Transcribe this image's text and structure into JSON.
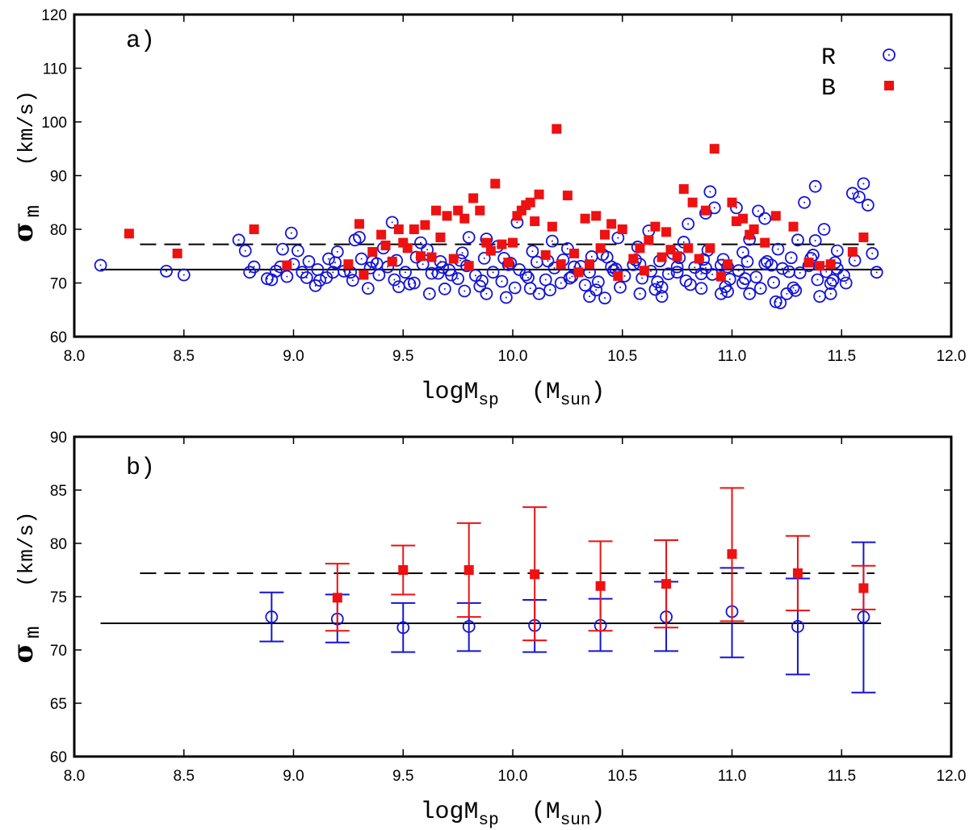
{
  "chart_data": [
    {
      "panel_label": "a)",
      "type": "scatter",
      "xlabel": {
        "main": "logM",
        "sub": "sp",
        "unit_pre": "(M",
        "unit_sub": "sun",
        "unit_post": ")"
      },
      "ylabel": {
        "symbol": "σ",
        "sub": "m",
        "unit": "(km/s)"
      },
      "xlim": [
        8.0,
        12.0
      ],
      "ylim": [
        60,
        120
      ],
      "xticks": [
        "8.0",
        "8.5",
        "9.0",
        "9.5",
        "10.0",
        "10.5",
        "11.0",
        "11.5",
        "12.0"
      ],
      "yticks": [
        "60",
        "70",
        "80",
        "90",
        "100",
        "110",
        "120"
      ],
      "reference_lines": [
        {
          "name": "R mean",
          "style": "solid",
          "y": 72.5,
          "x_range": [
            8.12,
            11.68
          ]
        },
        {
          "name": "B mean",
          "style": "dashed",
          "y": 77.2,
          "x_range": [
            8.3,
            11.65
          ]
        }
      ],
      "series": [
        {
          "name": "R",
          "marker": "open-circle-dot",
          "color": "#1414d6",
          "x": [
            8.12,
            8.42,
            8.5,
            8.75,
            8.78,
            8.8,
            8.82,
            8.88,
            8.9,
            8.92,
            8.94,
            8.95,
            8.97,
            8.99,
            9.12,
            9.18,
            9.3,
            9.45,
            9.62,
            9.72,
            9.8,
            9.88,
            9.97,
            10.02,
            10.12,
            10.22,
            10.35,
            10.42,
            10.45,
            10.58,
            10.62,
            10.68,
            10.75,
            10.8,
            10.86,
            10.88,
            10.9,
            10.92,
            10.95,
            10.98,
            11.02,
            11.05,
            11.08,
            11.12,
            11.15,
            11.2,
            11.22,
            11.25,
            11.3,
            11.33,
            11.38,
            11.4,
            11.42,
            11.45,
            11.48,
            11.52,
            11.55,
            11.58,
            11.6,
            11.62,
            11.64,
            11.66,
            9.0,
            9.04,
            9.07,
            9.11,
            9.15,
            9.19,
            9.23,
            9.27,
            9.31,
            9.35,
            9.39,
            9.43,
            9.47,
            9.51,
            9.55,
            9.59,
            9.63,
            9.67,
            9.71,
            9.75,
            9.79,
            9.83,
            9.87,
            9.91,
            9.95,
            9.99,
            10.03,
            10.07,
            10.11,
            10.15,
            10.19,
            10.23,
            10.27,
            10.31,
            10.35,
            10.39,
            10.43,
            10.47,
            10.51,
            10.55,
            10.59,
            10.63,
            10.67,
            10.71,
            10.75,
            10.79,
            10.83,
            10.87,
            10.91,
            10.95,
            10.99,
            11.03,
            11.07,
            11.11,
            11.15,
            11.19,
            11.23,
            11.27,
            11.31,
            11.35,
            11.39,
            11.43,
            11.47,
            11.51,
            9.02,
            9.1,
            9.2,
            9.34,
            9.41,
            9.53,
            9.61,
            9.69,
            9.77,
            9.85,
            9.93,
            10.01,
            10.09,
            10.17,
            10.25,
            10.33,
            10.41,
            10.49,
            10.57,
            10.65,
            10.73,
            10.81,
            10.89,
            10.97,
            11.05,
            11.13,
            11.21,
            11.29,
            11.37,
            11.45,
            9.06,
            9.26,
            9.46,
            9.66,
            9.86,
            10.06,
            10.26,
            10.46,
            10.66,
            10.86,
            11.06,
            11.26,
            11.46,
            9.16,
            9.36,
            9.56,
            9.76,
            9.96,
            10.16,
            10.36,
            10.56,
            10.76,
            10.96,
            11.16,
            11.36,
            11.56,
            9.28,
            9.58,
            9.88,
            10.18,
            10.48,
            10.78,
            11.08,
            11.38,
            9.48,
            9.78,
            10.08,
            10.38,
            10.68,
            10.98,
            11.28,
            9.38,
            9.68,
            9.98,
            10.28,
            10.58,
            10.88,
            11.18,
            11.48
          ],
          "y": [
            73.3,
            72.2,
            71.5,
            78.0,
            76.0,
            72.0,
            73.0,
            70.8,
            70.6,
            72.2,
            73.0,
            76.3,
            71.2,
            79.3,
            70.5,
            72.0,
            78.5,
            81.3,
            68.0,
            71.5,
            78.5,
            68.0,
            67.3,
            81.3,
            68.0,
            70.0,
            67.5,
            67.2,
            73.0,
            68.0,
            79.7,
            67.5,
            72.0,
            81.0,
            69.0,
            83.0,
            87.0,
            84.0,
            68.0,
            73.0,
            84.0,
            70.0,
            68.0,
            83.4,
            82.0,
            66.5,
            66.3,
            68.0,
            78.0,
            85.0,
            88.0,
            67.5,
            80.0,
            68.0,
            76.0,
            70.0,
            86.7,
            86.0,
            88.5,
            84.5,
            75.5,
            72.0,
            73.5,
            72.0,
            74.0,
            72.5,
            71.0,
            73.8,
            72.2,
            70.5,
            74.5,
            72.8,
            71.5,
            73.0,
            74.2,
            72.0,
            70.0,
            73.5,
            71.8,
            74.0,
            72.4,
            70.8,
            73.2,
            71.4,
            74.6,
            72.0,
            70.3,
            73.7,
            72.5,
            71.0,
            73.9,
            70.6,
            72.8,
            74.3,
            71.2,
            73.1,
            72.0,
            70.2,
            74.8,
            72.6,
            71.3,
            73.4,
            70.9,
            72.2,
            74.1,
            71.7,
            73.0,
            70.4,
            72.9,
            74.4,
            71.6,
            73.3,
            70.7,
            72.3,
            74.0,
            71.1,
            73.6,
            70.1,
            72.7,
            74.7,
            71.9,
            73.2,
            70.6,
            72.1,
            73.8,
            71.4,
            76.0,
            69.5,
            75.8,
            69.0,
            76.5,
            69.8,
            76.2,
            68.9,
            75.6,
            69.4,
            76.8,
            69.1,
            75.9,
            68.7,
            76.4,
            69.6,
            75.3,
            69.2,
            76.7,
            68.8,
            75.5,
            69.7,
            76.1,
            69.3,
            75.7,
            69.0,
            76.3,
            68.6,
            75.2,
            69.9,
            71.0,
            72.0,
            70.6,
            71.8,
            70.4,
            71.5,
            70.9,
            72.3,
            70.2,
            71.7,
            70.8,
            72.1,
            70.5,
            74.5,
            74.0,
            74.8,
            74.2,
            74.6,
            74.1,
            74.9,
            74.3,
            74.7,
            74.4,
            74.0,
            74.6,
            74.2,
            78.0,
            77.5,
            78.2,
            77.8,
            78.4,
            77.6,
            78.1,
            77.9,
            69.3,
            68.5,
            69.0,
            68.7,
            69.2,
            68.4,
            69.1,
            73.6,
            72.9,
            73.4,
            73.0,
            73.5,
            72.8,
            73.3,
            72.7
          ]
        },
        {
          "name": "B",
          "marker": "filled-square",
          "color": "#ee1111",
          "x": [
            8.25,
            8.47,
            8.82,
            8.97,
            9.25,
            9.3,
            9.32,
            9.36,
            9.4,
            9.42,
            9.45,
            9.48,
            9.5,
            9.52,
            9.55,
            9.58,
            9.6,
            9.63,
            9.65,
            9.67,
            9.7,
            9.73,
            9.75,
            9.78,
            9.8,
            9.82,
            9.85,
            9.88,
            9.9,
            9.92,
            9.95,
            9.98,
            10.0,
            10.02,
            10.04,
            10.06,
            10.08,
            10.1,
            10.12,
            10.15,
            10.18,
            10.2,
            10.22,
            10.25,
            10.28,
            10.3,
            10.33,
            10.35,
            10.38,
            10.4,
            10.42,
            10.45,
            10.48,
            10.5,
            10.55,
            10.58,
            10.6,
            10.62,
            10.65,
            10.68,
            10.7,
            10.72,
            10.75,
            10.78,
            10.8,
            10.82,
            10.85,
            10.88,
            10.9,
            10.92,
            10.95,
            10.98,
            11.0,
            11.02,
            11.05,
            11.08,
            11.1,
            11.15,
            11.2,
            11.28,
            11.35,
            11.4,
            11.45,
            11.55,
            11.6
          ],
          "y": [
            79.2,
            75.5,
            80.0,
            73.3,
            73.5,
            81.0,
            71.5,
            75.8,
            79.0,
            77.0,
            74.0,
            80.0,
            77.5,
            76.5,
            80.0,
            75.0,
            80.8,
            74.8,
            83.5,
            78.5,
            82.5,
            74.5,
            83.5,
            82.0,
            73.2,
            85.8,
            83.5,
            77.5,
            76.0,
            88.5,
            77.2,
            73.8,
            77.5,
            82.5,
            83.5,
            84.5,
            85.0,
            81.5,
            86.5,
            75.2,
            80.5,
            98.7,
            73.5,
            86.3,
            75.5,
            72.0,
            82.0,
            73.5,
            82.5,
            76.5,
            79.0,
            81.0,
            71.3,
            80.0,
            74.5,
            76.5,
            72.3,
            78.0,
            80.5,
            74.8,
            79.5,
            76.2,
            75.0,
            87.5,
            76.5,
            85.0,
            74.5,
            83.5,
            76.5,
            95.0,
            71.2,
            73.5,
            85.0,
            81.5,
            82.0,
            79.0,
            80.0,
            77.5,
            82.5,
            80.5,
            73.8,
            73.2,
            73.5,
            75.8,
            78.5
          ]
        }
      ],
      "legend": {
        "position": "top-right",
        "entries": [
          "R",
          "B"
        ]
      }
    },
    {
      "panel_label": "b)",
      "type": "errorbar",
      "xlabel": {
        "main": "logM",
        "sub": "sp",
        "unit_pre": "(M",
        "unit_sub": "sun",
        "unit_post": ")"
      },
      "ylabel": {
        "symbol": "σ",
        "sub": "m",
        "unit": "(km/s)"
      },
      "xlim": [
        8.0,
        12.0
      ],
      "ylim": [
        60,
        90
      ],
      "xticks": [
        "8.0",
        "8.5",
        "9.0",
        "9.5",
        "10.0",
        "10.5",
        "11.0",
        "11.5",
        "12.0"
      ],
      "yticks": [
        "60",
        "65",
        "70",
        "75",
        "80",
        "85",
        "90"
      ],
      "reference_lines": [
        {
          "name": "R mean",
          "style": "solid",
          "y": 72.5,
          "x_range": [
            8.12,
            11.68
          ]
        },
        {
          "name": "B mean",
          "style": "dashed",
          "y": 77.2,
          "x_range": [
            8.3,
            11.65
          ]
        }
      ],
      "series": [
        {
          "name": "R",
          "marker": "open-circle",
          "color": "#1414d6",
          "x": [
            8.9,
            9.2,
            9.5,
            9.8,
            10.1,
            10.4,
            10.7,
            11.0,
            11.3,
            11.6
          ],
          "y": [
            73.1,
            72.9,
            72.1,
            72.2,
            72.3,
            72.3,
            73.1,
            73.6,
            72.2,
            73.1
          ],
          "err_low": [
            70.8,
            70.7,
            69.8,
            69.9,
            69.8,
            69.9,
            69.9,
            69.3,
            67.7,
            66.0
          ],
          "err_high": [
            75.4,
            75.2,
            74.4,
            74.4,
            74.7,
            74.8,
            76.4,
            77.7,
            76.7,
            80.1
          ]
        },
        {
          "name": "B",
          "marker": "filled-square",
          "color": "#ee1111",
          "x": [
            9.2,
            9.5,
            9.8,
            10.1,
            10.4,
            10.7,
            11.0,
            11.3,
            11.6
          ],
          "y": [
            74.9,
            77.5,
            77.5,
            77.1,
            76.0,
            76.2,
            79.0,
            77.2,
            75.8
          ],
          "err_low": [
            71.8,
            75.2,
            73.1,
            70.9,
            71.8,
            72.1,
            72.7,
            73.7,
            73.8
          ],
          "err_high": [
            78.1,
            79.8,
            81.9,
            83.4,
            80.2,
            80.3,
            85.2,
            80.7,
            77.9
          ]
        }
      ]
    }
  ]
}
